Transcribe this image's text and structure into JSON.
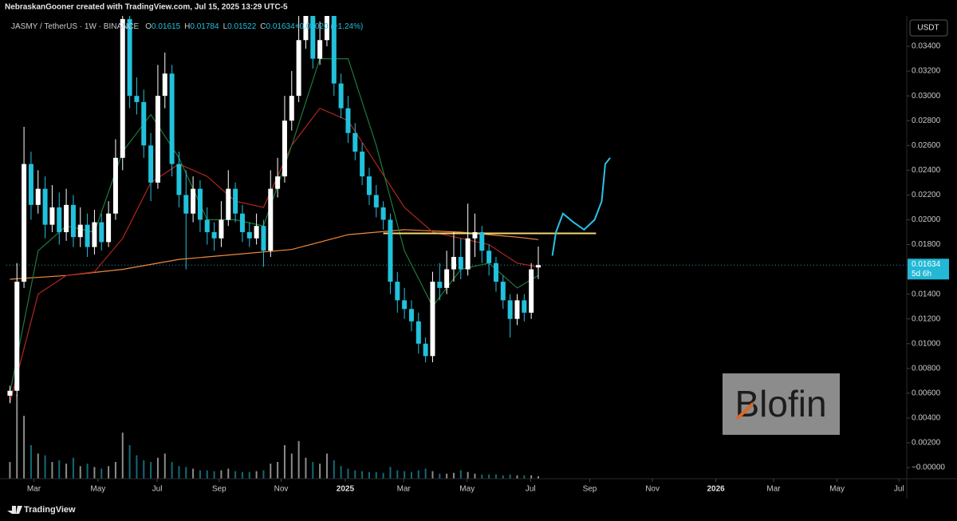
{
  "header": "NebraskanGooner created with TradingView.com, Jul 15, 2025 13:29 UTC-5",
  "footer": "TradingView",
  "watermark": "Blofin",
  "chart_data": {
    "type": "candlestick",
    "symbol": "JASMY / TetherUS · 1W · BINANCE",
    "legend_values": [
      {
        "key": "O",
        "value": "0.01615"
      },
      {
        "key": "H",
        "value": "0.01784"
      },
      {
        "key": "L",
        "value": "0.01522"
      },
      {
        "key": "C",
        "value": "0.01634"
      },
      {
        "key": "",
        "value": "+0.00020 (+1.24%)"
      }
    ],
    "currency": "USDT",
    "up_color": "#ffffff",
    "down_color": "#22c1dc",
    "open": [
      0.0058,
      0.0062,
      0.015,
      0.0245,
      0.0212,
      0.0225,
      0.0196,
      0.021,
      0.019,
      0.0212,
      0.0186,
      0.0196,
      0.0178,
      0.0198,
      0.0182,
      0.0205,
      0.025,
      0.0362,
      0.03,
      0.0295,
      0.026,
      0.023,
      0.03,
      0.0318,
      0.0245,
      0.022,
      0.0205,
      0.0225,
      0.02,
      0.019,
      0.0185,
      0.02,
      0.0225,
      0.0205,
      0.019,
      0.0185,
      0.0195,
      0.0175,
      0.0225,
      0.0235,
      0.028,
      0.03,
      0.0345,
      0.0365,
      0.033,
      0.0345,
      0.0365,
      0.031,
      0.029,
      0.027,
      0.0255,
      0.0235,
      0.022,
      0.021,
      0.02,
      0.015,
      0.0135,
      0.0128,
      0.0118,
      0.01,
      0.009,
      0.015,
      0.0145,
      0.016,
      0.017,
      0.016,
      0.0185,
      0.019,
      0.0175,
      0.0165,
      0.015,
      0.0135,
      0.012,
      0.0135,
      0.0125,
      0.01615
    ],
    "high": [
      0.0066,
      0.0165,
      0.0275,
      0.0255,
      0.024,
      0.0235,
      0.0228,
      0.0222,
      0.0225,
      0.022,
      0.021,
      0.0205,
      0.0208,
      0.0205,
      0.0215,
      0.0265,
      0.038,
      0.037,
      0.0315,
      0.0305,
      0.027,
      0.0325,
      0.0335,
      0.0325,
      0.0255,
      0.024,
      0.0235,
      0.0232,
      0.021,
      0.0198,
      0.0215,
      0.024,
      0.023,
      0.0212,
      0.0198,
      0.0205,
      0.02,
      0.024,
      0.025,
      0.03,
      0.032,
      0.0365,
      0.038,
      0.0375,
      0.036,
      0.038,
      0.037,
      0.0318,
      0.03,
      0.0278,
      0.0262,
      0.0242,
      0.0228,
      0.0215,
      0.0205,
      0.0158,
      0.0145,
      0.0135,
      0.0125,
      0.0105,
      0.0158,
      0.0165,
      0.0175,
      0.019,
      0.0185,
      0.0213,
      0.0205,
      0.0195,
      0.018,
      0.017,
      0.0155,
      0.014,
      0.014,
      0.014,
      0.0165,
      0.01784
    ],
    "low": [
      0.0052,
      0.0058,
      0.0145,
      0.02,
      0.0205,
      0.0185,
      0.019,
      0.018,
      0.0183,
      0.0178,
      0.0178,
      0.017,
      0.0172,
      0.0175,
      0.0178,
      0.02,
      0.024,
      0.029,
      0.0285,
      0.025,
      0.0215,
      0.0225,
      0.029,
      0.0235,
      0.021,
      0.016,
      0.0198,
      0.019,
      0.018,
      0.0175,
      0.0178,
      0.0195,
      0.0198,
      0.0182,
      0.0178,
      0.018,
      0.0162,
      0.017,
      0.0218,
      0.023,
      0.0272,
      0.0295,
      0.0338,
      0.0322,
      0.0325,
      0.034,
      0.03,
      0.0282,
      0.0262,
      0.0248,
      0.0228,
      0.0212,
      0.0202,
      0.0192,
      0.014,
      0.0125,
      0.012,
      0.011,
      0.0092,
      0.0085,
      0.0085,
      0.0135,
      0.014,
      0.015,
      0.0152,
      0.0155,
      0.017,
      0.0165,
      0.0155,
      0.0142,
      0.0128,
      0.0105,
      0.0115,
      0.0118,
      0.012,
      0.01522
    ],
    "close": [
      0.0062,
      0.015,
      0.0245,
      0.0212,
      0.0225,
      0.0196,
      0.021,
      0.019,
      0.0212,
      0.0186,
      0.0196,
      0.0178,
      0.0198,
      0.0182,
      0.0205,
      0.025,
      0.0362,
      0.03,
      0.0295,
      0.026,
      0.023,
      0.03,
      0.0318,
      0.0245,
      0.022,
      0.0205,
      0.0225,
      0.02,
      0.019,
      0.0185,
      0.02,
      0.0225,
      0.0205,
      0.019,
      0.0185,
      0.0195,
      0.0175,
      0.0225,
      0.0235,
      0.028,
      0.03,
      0.0345,
      0.0365,
      0.033,
      0.0345,
      0.0365,
      0.031,
      0.029,
      0.027,
      0.0255,
      0.0235,
      0.022,
      0.021,
      0.02,
      0.015,
      0.0135,
      0.0128,
      0.0118,
      0.01,
      0.009,
      0.015,
      0.0145,
      0.016,
      0.017,
      0.016,
      0.0185,
      0.019,
      0.0175,
      0.0165,
      0.015,
      0.0135,
      0.012,
      0.0135,
      0.0125,
      0.016,
      0.01634
    ],
    "volume": [
      20,
      100,
      75,
      40,
      30,
      28,
      20,
      22,
      18,
      25,
      15,
      18,
      14,
      12,
      15,
      20,
      55,
      40,
      28,
      22,
      20,
      25,
      30,
      20,
      15,
      14,
      12,
      10,
      10,
      9,
      10,
      12,
      9,
      8,
      8,
      9,
      10,
      18,
      20,
      40,
      30,
      45,
      25,
      20,
      18,
      30,
      22,
      15,
      12,
      10,
      9,
      8,
      8,
      7,
      14,
      10,
      9,
      8,
      10,
      12,
      9,
      6,
      6,
      7,
      10,
      8,
      6,
      5,
      5,
      5,
      4,
      5,
      4,
      4,
      4,
      3
    ],
    "lines": [
      {
        "color": "#f08a3c",
        "x": [
          0,
          8,
          16,
          24,
          32,
          40,
          48,
          56,
          64,
          72,
          75
        ],
        "values": [
          0.0152,
          0.0155,
          0.016,
          0.0168,
          0.0172,
          0.0176,
          0.0188,
          0.0192,
          0.019,
          0.0186,
          0.0184
        ]
      },
      {
        "color": "#b3261e",
        "x": [
          0,
          4,
          8,
          12,
          16,
          20,
          24,
          28,
          32,
          36,
          40,
          44,
          48,
          52,
          56,
          60,
          64,
          68,
          72,
          75
        ],
        "values": [
          0.0052,
          0.014,
          0.0155,
          0.0158,
          0.0185,
          0.023,
          0.0245,
          0.0235,
          0.0215,
          0.021,
          0.026,
          0.029,
          0.028,
          0.0245,
          0.021,
          0.019,
          0.0185,
          0.018,
          0.0165,
          0.0162
        ]
      },
      {
        "color": "#1f7a3a",
        "x": [
          0,
          4,
          8,
          12,
          16,
          20,
          24,
          28,
          32,
          36,
          40,
          44,
          48,
          52,
          56,
          60,
          64,
          68,
          72,
          75
        ],
        "values": [
          0.006,
          0.0175,
          0.0195,
          0.019,
          0.0255,
          0.0285,
          0.025,
          0.02,
          0.02,
          0.0195,
          0.026,
          0.033,
          0.033,
          0.026,
          0.0175,
          0.013,
          0.016,
          0.0165,
          0.0145,
          0.0155
        ]
      },
      {
        "color": "#f5d76e",
        "x": [
          53,
          83.2
        ],
        "values": [
          0.0189,
          0.0189
        ]
      },
      {
        "color": "#29c3e6",
        "x": [
          77,
          77.5,
          78.5,
          80,
          81.5,
          83,
          84,
          84.5,
          85.2
        ],
        "values": [
          0.0171,
          0.019,
          0.0205,
          0.0198,
          0.0192,
          0.02,
          0.0215,
          0.0245,
          0.025
        ]
      }
    ],
    "price_line": 0.01634,
    "countdown": "5d 6h",
    "xlim": [
      -0.5,
      127.3
    ],
    "xticks": [
      {
        "value": 3.4,
        "label": "Mar"
      },
      {
        "value": 12.5,
        "label": "May"
      },
      {
        "value": 20.9,
        "label": "Jul"
      },
      {
        "value": 29.7,
        "label": "Sep"
      },
      {
        "value": 38.5,
        "label": "Nov"
      },
      {
        "value": 47.6,
        "label": "2025"
      },
      {
        "value": 55.9,
        "label": "Mar"
      },
      {
        "value": 64.9,
        "label": "May"
      },
      {
        "value": 73.9,
        "label": "Jul"
      },
      {
        "value": 82.3,
        "label": "Sep"
      },
      {
        "value": 91.2,
        "label": "Nov"
      },
      {
        "value": 100.2,
        "label": "2026"
      },
      {
        "value": 108.4,
        "label": "Mar"
      },
      {
        "value": 117.4,
        "label": "May"
      },
      {
        "value": 126.2,
        "label": "Jul"
      }
    ],
    "ylim": [
      -0.0009,
      0.03645
    ],
    "yticks": [
      {
        "value": 0,
        "label": "−0.00000"
      },
      {
        "value": 0.002,
        "label": "0.00200"
      },
      {
        "value": 0.004,
        "label": "0.00400"
      },
      {
        "value": 0.006,
        "label": "0.00600"
      },
      {
        "value": 0.008,
        "label": "0.00800"
      },
      {
        "value": 0.01,
        "label": "0.01000"
      },
      {
        "value": 0.012,
        "label": "0.01200"
      },
      {
        "value": 0.014,
        "label": "0.01400"
      },
      {
        "value": 0.018,
        "label": "0.01800"
      },
      {
        "value": 0.02,
        "label": "0.02000"
      },
      {
        "value": 0.022,
        "label": "0.02200"
      },
      {
        "value": 0.024,
        "label": "0.02400"
      },
      {
        "value": 0.026,
        "label": "0.02600"
      },
      {
        "value": 0.028,
        "label": "0.02800"
      },
      {
        "value": 0.03,
        "label": "0.03000"
      },
      {
        "value": 0.032,
        "label": "0.03200"
      },
      {
        "value": 0.034,
        "label": "0.03400"
      }
    ]
  }
}
